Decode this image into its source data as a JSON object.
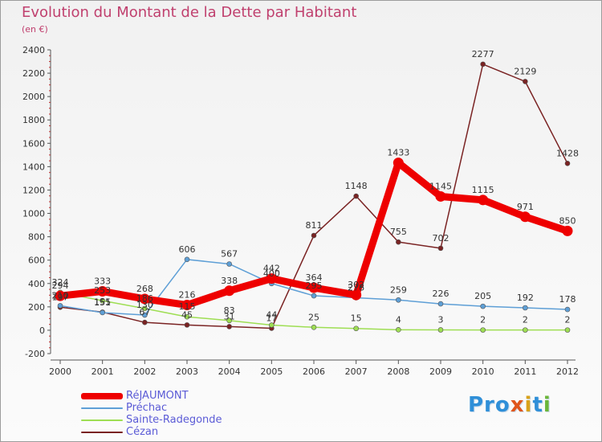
{
  "title": "Evolution du Montant de la Dette par Habitant",
  "subtitle": "(en €)",
  "logo": {
    "parts": [
      "Pro",
      "x",
      "i",
      "t",
      "i"
    ]
  },
  "colors": {
    "axis": "#555555",
    "grid": "#d9d9d9",
    "label": "#333333"
  },
  "chart_data": {
    "type": "line",
    "title": "Evolution du Montant de la Dette par Habitant",
    "ylabel": "(en €)",
    "x": [
      "2000",
      "2001",
      "2002",
      "2003",
      "2004",
      "2005",
      "2006",
      "2007",
      "2008",
      "2009",
      "2010",
      "2011",
      "2012"
    ],
    "ylim": [
      -200,
      2400
    ],
    "yticks": [
      -200,
      0,
      200,
      400,
      600,
      800,
      1000,
      1200,
      1400,
      1600,
      1800,
      2000,
      2200,
      2400
    ],
    "grid": false,
    "legend_position": "bottom-left",
    "series": [
      {
        "name": "RéJAUMONT",
        "color": "#ee0000",
        "width": 9,
        "values": [
          294,
          333,
          268,
          216,
          338,
          442,
          364,
          302,
          1433,
          1145,
          1115,
          971,
          850
        ],
        "labels": [
          "294",
          "333",
          "268",
          "216",
          "338",
          "442",
          "364",
          "302",
          "1433",
          "1145",
          "1115",
          "971",
          "850"
        ]
      },
      {
        "name": "Préchac",
        "color": "#5e9fd6",
        "width": 1.5,
        "values": [
          210,
          151,
          130,
          606,
          567,
          400,
          295,
          278,
          259,
          226,
          205,
          192,
          178
        ],
        "labels": [
          "210",
          "151",
          "130",
          "606",
          "567",
          "400",
          "295",
          "278",
          "259",
          "226",
          "205",
          "192",
          "178"
        ]
      },
      {
        "name": "Sainte-Radegonde",
        "color": "#9ede53",
        "width": 1.5,
        "values": [
          324,
          253,
          186,
          115,
          83,
          44,
          25,
          15,
          4,
          3,
          2,
          2,
          2
        ],
        "labels": [
          "324",
          "253",
          "186",
          "115",
          "83",
          "44",
          "25",
          "15",
          "4",
          "3",
          "2",
          "2",
          "2"
        ]
      },
      {
        "name": "Cézan",
        "color": "#7a2323",
        "width": 1.5,
        "values": [
          197,
          155,
          67,
          45,
          31,
          17,
          811,
          1148,
          755,
          702,
          2277,
          2129,
          1428
        ],
        "labels": [
          "197",
          "155",
          "67",
          "45",
          "31",
          "17",
          "811",
          "1148",
          "755",
          "702",
          "2277",
          "2129",
          "1428"
        ]
      }
    ]
  }
}
